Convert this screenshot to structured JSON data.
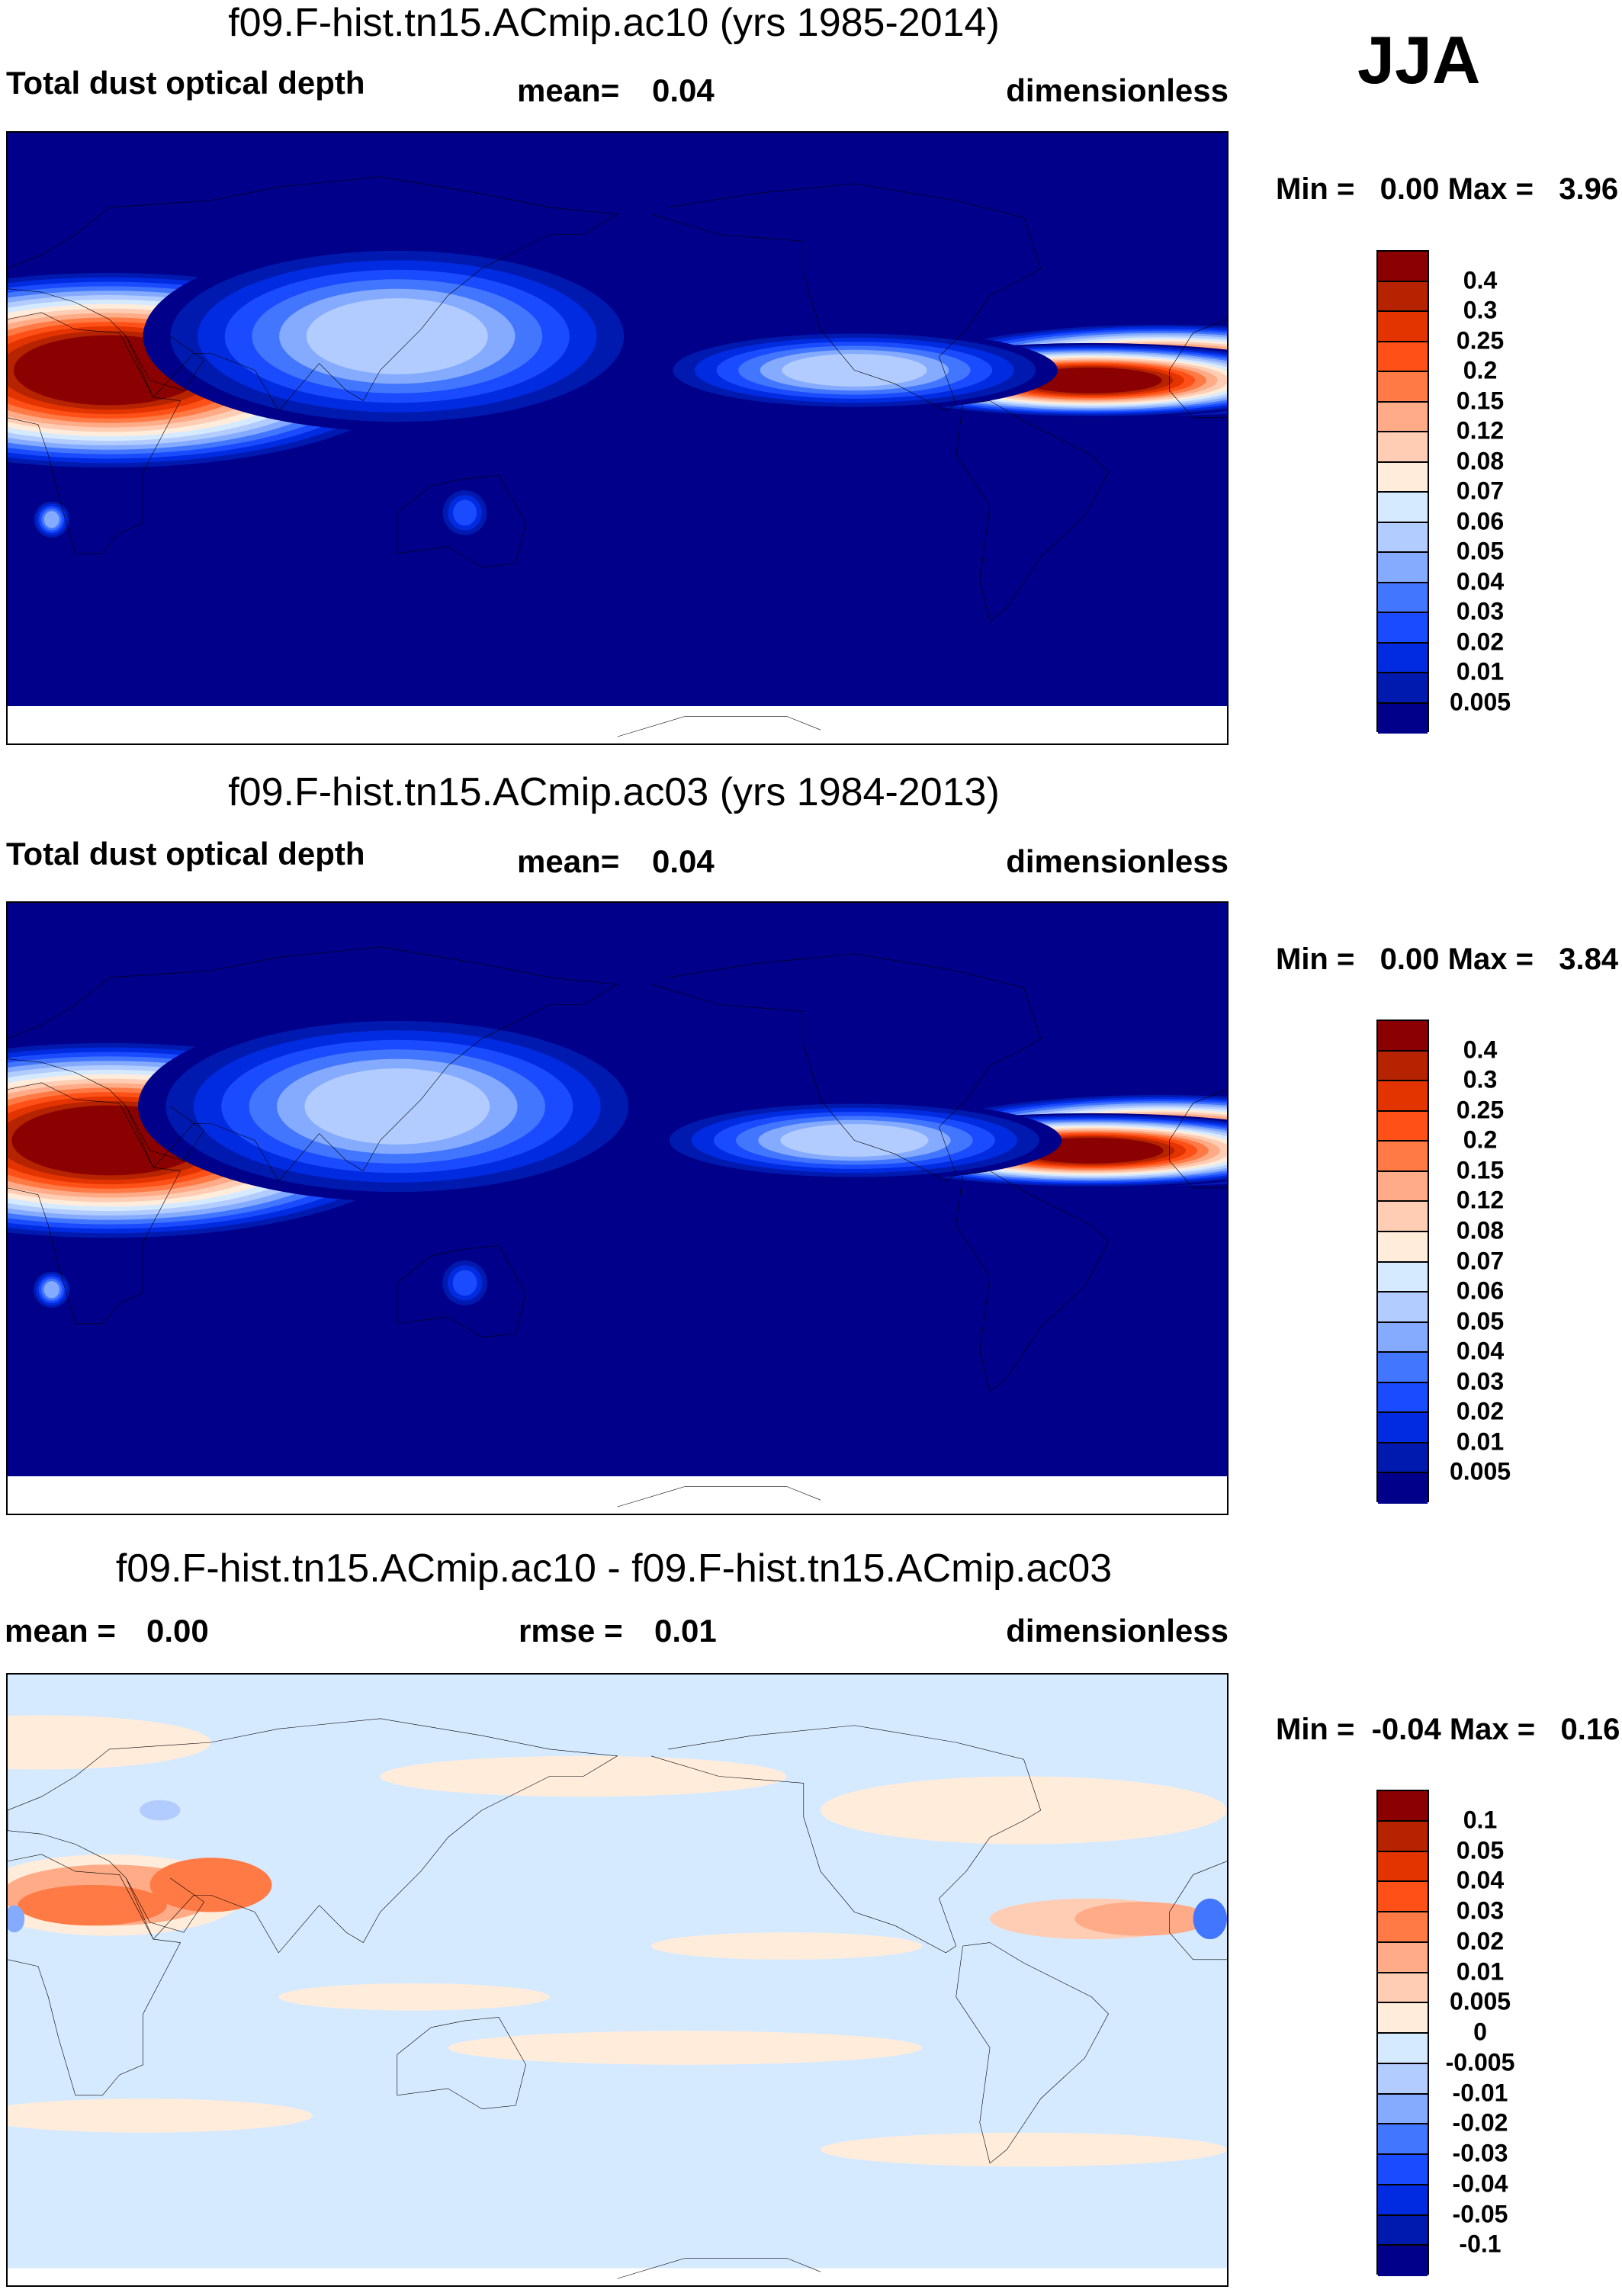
{
  "season": "JJA",
  "colors": [
    "#8B0000",
    "#B52300",
    "#E33400",
    "#FF5018",
    "#FF7A45",
    "#FFAB87",
    "#FFCDB4",
    "#FFECDB",
    "#D6EAFF",
    "#B3CCFF",
    "#84ABFF",
    "#4376FF",
    "#1B4BFF",
    "#002BE0",
    "#001AAF",
    "#00008A"
  ],
  "chart_data": [
    {
      "type": "heatmap",
      "title": "f09.F-hist.tn15.ACmip.ac10 (yrs 1985-2014)",
      "variable": "Total dust optical depth",
      "mean_label": "mean=",
      "mean": "0.04",
      "units": "dimensionless",
      "minmax": "Min =   0.00 Max =   3.96",
      "levels": [
        "0.4",
        "0.3",
        "0.25",
        "0.2",
        "0.15",
        "0.12",
        "0.08",
        "0.07",
        "0.06",
        "0.05",
        "0.04",
        "0.03",
        "0.02",
        "0.01",
        "0.005"
      ]
    },
    {
      "type": "heatmap",
      "title": "f09.F-hist.tn15.ACmip.ac03 (yrs 1984-2013)",
      "variable": "Total dust optical depth",
      "mean_label": "mean=",
      "mean": "0.04",
      "units": "dimensionless",
      "minmax": "Min =   0.00 Max =   3.84",
      "levels": [
        "0.4",
        "0.3",
        "0.25",
        "0.2",
        "0.15",
        "0.12",
        "0.08",
        "0.07",
        "0.06",
        "0.05",
        "0.04",
        "0.03",
        "0.02",
        "0.01",
        "0.005"
      ]
    },
    {
      "type": "heatmap",
      "title": "f09.F-hist.tn15.ACmip.ac10 - f09.F-hist.tn15.ACmip.ac03",
      "mean_label": "mean =",
      "mean": "0.00",
      "rmse_label": "rmse =",
      "rmse": "0.01",
      "units": "dimensionless",
      "minmax": "Min =  -0.04 Max =   0.16",
      "levels": [
        "0.1",
        "0.05",
        "0.04",
        "0.03",
        "0.02",
        "0.01",
        "0.005",
        "0",
        "-0.005",
        "-0.01",
        "-0.02",
        "-0.03",
        "-0.04",
        "-0.05",
        "-0.1"
      ]
    }
  ]
}
